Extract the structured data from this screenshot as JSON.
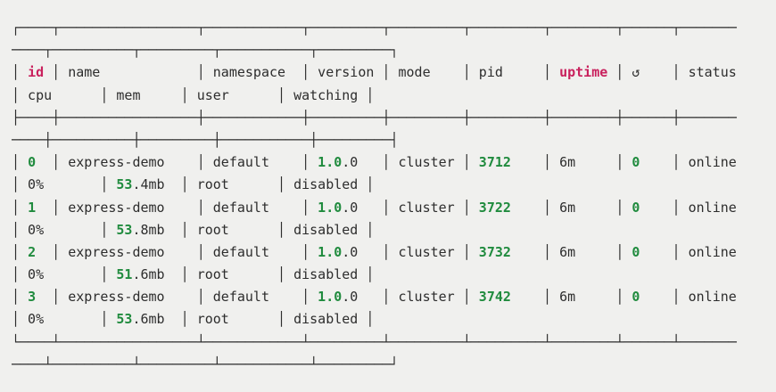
{
  "app": "terminal-pm2-process-list",
  "colors": {
    "bg": "#f0f0ee",
    "fg": "#2d2d2d",
    "green": "#208b3e",
    "red": "#c9215d"
  },
  "table": {
    "columns": [
      "id",
      "name",
      "namespace",
      "version",
      "mode",
      "pid",
      "uptime",
      "↺",
      "status",
      "cpu",
      "mem",
      "user",
      "watching"
    ],
    "rows": [
      [
        "0",
        "express-demo",
        "default",
        "1.0.0",
        "cluster",
        "3712",
        "6m",
        "0",
        "online",
        "0%",
        "53.4mb",
        "root",
        "disabled"
      ],
      [
        "1",
        "express-demo",
        "default",
        "1.0.0",
        "cluster",
        "3722",
        "6m",
        "0",
        "online",
        "0%",
        "53.8mb",
        "root",
        "disabled"
      ],
      [
        "2",
        "express-demo",
        "default",
        "1.0.0",
        "cluster",
        "3732",
        "6m",
        "0",
        "online",
        "0%",
        "51.6mb",
        "root",
        "disabled"
      ],
      [
        "3",
        "express-demo",
        "default",
        "1.0.0",
        "cluster",
        "3742",
        "6m",
        "0",
        "online",
        "0%",
        "53.6mb",
        "root",
        "disabled"
      ]
    ]
  },
  "terminal": {
    "lines": [
      {
        "name": "border-top-line-1",
        "seg": [
          {
            "t": "┌────┬─────────────────┬────────────┬─────────┬─────────┬─────────┬────────┬──────┬───────",
            "c": "fg"
          }
        ]
      },
      {
        "name": "border-top-line-2",
        "seg": [
          {
            "t": "────┬──────────┬─────────┬───────────┬─────────┐",
            "c": "fg"
          }
        ]
      },
      {
        "name": "header-row-line-1",
        "seg": [
          {
            "t": "│ ",
            "c": "fg"
          },
          {
            "t": "id",
            "c": "r"
          },
          {
            "t": " │ name            │ namespace  │ version │ mode    │ pid     │ ",
            "c": "fg"
          },
          {
            "t": "uptime",
            "c": "r"
          },
          {
            "t": " │ ↺    │ status",
            "c": "fg"
          }
        ]
      },
      {
        "name": "header-row-line-2",
        "seg": [
          {
            "t": "│ cpu      │ mem     │ user      │ watching │",
            "c": "fg"
          }
        ]
      },
      {
        "name": "header-separator-line-1",
        "seg": [
          {
            "t": "├────┼─────────────────┼────────────┼─────────┼─────────┼─────────┼────────┼──────┼───────",
            "c": "fg"
          }
        ]
      },
      {
        "name": "header-separator-line-2",
        "seg": [
          {
            "t": "────┼──────────┼─────────┼───────────┼─────────┤",
            "c": "fg"
          }
        ]
      },
      {
        "name": "process-row-0-line-1",
        "seg": [
          {
            "t": "│ ",
            "c": "fg"
          },
          {
            "t": "0",
            "c": "g"
          },
          {
            "t": "  │ express-demo    │ default    │ ",
            "c": "fg"
          },
          {
            "t": "1.0",
            "c": "g"
          },
          {
            "t": ".0   ",
            "c": "fg"
          },
          {
            "t": "│ cluster │ ",
            "c": "fg"
          },
          {
            "t": "3712",
            "c": "g"
          },
          {
            "t": "    │ 6m     │ ",
            "c": "fg"
          },
          {
            "t": "0",
            "c": "g"
          },
          {
            "t": "    │ online",
            "c": "fg"
          }
        ]
      },
      {
        "name": "process-row-0-line-2",
        "seg": [
          {
            "t": "│ 0%       │ ",
            "c": "fg"
          },
          {
            "t": "53",
            "c": "g"
          },
          {
            "t": ".4mb  │ root      │ disabled │",
            "c": "fg"
          }
        ]
      },
      {
        "name": "process-row-1-line-1",
        "seg": [
          {
            "t": "│ ",
            "c": "fg"
          },
          {
            "t": "1",
            "c": "g"
          },
          {
            "t": "  │ express-demo    │ default    │ ",
            "c": "fg"
          },
          {
            "t": "1.0",
            "c": "g"
          },
          {
            "t": ".0   ",
            "c": "fg"
          },
          {
            "t": "│ cluster │ ",
            "c": "fg"
          },
          {
            "t": "3722",
            "c": "g"
          },
          {
            "t": "    │ 6m     │ ",
            "c": "fg"
          },
          {
            "t": "0",
            "c": "g"
          },
          {
            "t": "    │ online",
            "c": "fg"
          }
        ]
      },
      {
        "name": "process-row-1-line-2",
        "seg": [
          {
            "t": "│ 0%       │ ",
            "c": "fg"
          },
          {
            "t": "53",
            "c": "g"
          },
          {
            "t": ".8mb  │ root      │ disabled │",
            "c": "fg"
          }
        ]
      },
      {
        "name": "process-row-2-line-1",
        "seg": [
          {
            "t": "│ ",
            "c": "fg"
          },
          {
            "t": "2",
            "c": "g"
          },
          {
            "t": "  │ express-demo    │ default    │ ",
            "c": "fg"
          },
          {
            "t": "1.0",
            "c": "g"
          },
          {
            "t": ".0   ",
            "c": "fg"
          },
          {
            "t": "│ cluster │ ",
            "c": "fg"
          },
          {
            "t": "3732",
            "c": "g"
          },
          {
            "t": "    │ 6m     │ ",
            "c": "fg"
          },
          {
            "t": "0",
            "c": "g"
          },
          {
            "t": "    │ online",
            "c": "fg"
          }
        ]
      },
      {
        "name": "process-row-2-line-2",
        "seg": [
          {
            "t": "│ 0%       │ ",
            "c": "fg"
          },
          {
            "t": "51",
            "c": "g"
          },
          {
            "t": ".6mb  │ root      │ disabled │",
            "c": "fg"
          }
        ]
      },
      {
        "name": "process-row-3-line-1",
        "seg": [
          {
            "t": "│ ",
            "c": "fg"
          },
          {
            "t": "3",
            "c": "g"
          },
          {
            "t": "  │ express-demo    │ default    │ ",
            "c": "fg"
          },
          {
            "t": "1.0",
            "c": "g"
          },
          {
            "t": ".0   ",
            "c": "fg"
          },
          {
            "t": "│ cluster │ ",
            "c": "fg"
          },
          {
            "t": "3742",
            "c": "g"
          },
          {
            "t": "    │ 6m     │ ",
            "c": "fg"
          },
          {
            "t": "0",
            "c": "g"
          },
          {
            "t": "    │ online",
            "c": "fg"
          }
        ]
      },
      {
        "name": "process-row-3-line-2",
        "seg": [
          {
            "t": "│ 0%       │ ",
            "c": "fg"
          },
          {
            "t": "53",
            "c": "g"
          },
          {
            "t": ".6mb  │ root      │ disabled │",
            "c": "fg"
          }
        ]
      },
      {
        "name": "border-bottom-line-1",
        "seg": [
          {
            "t": "└────┴─────────────────┴────────────┴─────────┴─────────┴─────────┴────────┴──────┴───────",
            "c": "fg"
          }
        ]
      },
      {
        "name": "border-bottom-line-2",
        "seg": [
          {
            "t": "────┴──────────┴─────────┴───────────┴─────────┘",
            "c": "fg"
          }
        ]
      }
    ]
  }
}
